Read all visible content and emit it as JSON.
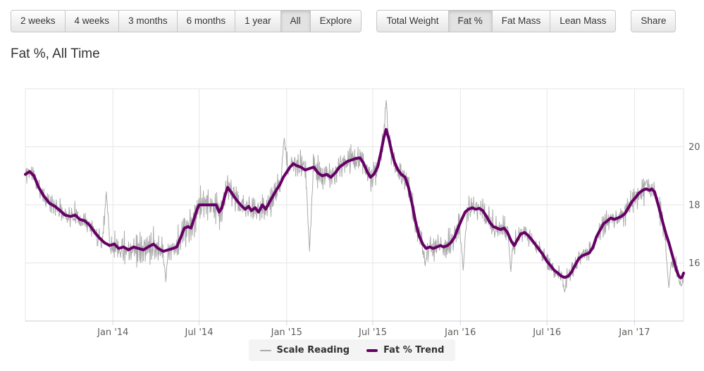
{
  "title": "Fat %, All Time",
  "toolbar": {
    "groups": [
      {
        "name": "time-range",
        "buttons": [
          {
            "label": "2 weeks",
            "active": false
          },
          {
            "label": "4 weeks",
            "active": false
          },
          {
            "label": "3 months",
            "active": false
          },
          {
            "label": "6 months",
            "active": false
          },
          {
            "label": "1 year",
            "active": false
          },
          {
            "label": "All",
            "active": true
          },
          {
            "label": "Explore",
            "active": false
          }
        ]
      },
      {
        "name": "metric",
        "buttons": [
          {
            "label": "Total Weight",
            "active": false
          },
          {
            "label": "Fat %",
            "active": true
          },
          {
            "label": "Fat Mass",
            "active": false
          },
          {
            "label": "Lean Mass",
            "active": false
          }
        ]
      },
      {
        "name": "share",
        "buttons": [
          {
            "label": "Share",
            "active": false
          }
        ]
      }
    ]
  },
  "legend": {
    "items": [
      {
        "label": "Scale Reading",
        "color": "#aaaaaa",
        "thickness": 2
      },
      {
        "label": "Fat % Trend",
        "color": "#660066",
        "thickness": 4
      }
    ]
  },
  "chart_data": {
    "type": "line",
    "title": "Fat %, All Time",
    "x_axis": {
      "epoch": "2013-07-01",
      "unit": "days_since_epoch",
      "range": [
        0,
        1383
      ],
      "ticks": [
        {
          "day": 184,
          "label": "Jan '14"
        },
        {
          "day": 365,
          "label": "Jul '14"
        },
        {
          "day": 549,
          "label": "Jan '15"
        },
        {
          "day": 730,
          "label": "Jul '15"
        },
        {
          "day": 914,
          "label": "Jan '16"
        },
        {
          "day": 1096,
          "label": "Jul '16"
        },
        {
          "day": 1280,
          "label": "Jan '17"
        }
      ]
    },
    "y_axis": {
      "range": [
        14,
        22
      ],
      "ticks": [
        16,
        18,
        20
      ],
      "unit": "percent",
      "opposite": true
    },
    "colors": {
      "grid": "#e6e6e6",
      "plot_border": "#e6e6e6",
      "axis_line": "#c9ccd1",
      "tick": "#ccd6eb",
      "axis_label": "#606060"
    },
    "legend_position": "bottom-center",
    "series": [
      {
        "name": "Scale Reading",
        "color": "#aaaaaa",
        "width": 1,
        "style": "noisy_daily_readings_around_trend",
        "noise_seed": 11,
        "noise_profile": [
          [
            0,
            0.34
          ],
          [
            150,
            0.52
          ],
          [
            460,
            0.44
          ],
          [
            700,
            0.42
          ],
          [
            1000,
            0.34
          ],
          [
            1260,
            0.4
          ]
        ],
        "extremes": [
          [
            170,
            18.45
          ],
          [
            295,
            15.35
          ],
          [
            544,
            20.3
          ],
          [
            597,
            16.4
          ],
          [
            758,
            21.6
          ],
          [
            840,
            15.9
          ],
          [
            920,
            15.75
          ],
          [
            1020,
            15.7
          ],
          [
            1133,
            15.0
          ],
          [
            1305,
            18.85
          ],
          [
            1352,
            15.15
          ],
          [
            1378,
            15.2
          ]
        ]
      },
      {
        "name": "Fat % Trend",
        "color": "#660066",
        "width": 4,
        "points": [
          [
            0,
            19.05
          ],
          [
            9,
            19.15
          ],
          [
            18,
            19.0
          ],
          [
            28,
            18.6
          ],
          [
            39,
            18.3
          ],
          [
            51,
            18.05
          ],
          [
            62,
            17.95
          ],
          [
            73,
            17.8
          ],
          [
            83,
            17.65
          ],
          [
            95,
            17.6
          ],
          [
            105,
            17.65
          ],
          [
            114,
            17.5
          ],
          [
            125,
            17.45
          ],
          [
            135,
            17.3
          ],
          [
            146,
            17.05
          ],
          [
            156,
            16.85
          ],
          [
            166,
            16.7
          ],
          [
            177,
            16.6
          ],
          [
            187,
            16.65
          ],
          [
            196,
            16.5
          ],
          [
            206,
            16.55
          ],
          [
            217,
            16.45
          ],
          [
            227,
            16.55
          ],
          [
            238,
            16.5
          ],
          [
            248,
            16.45
          ],
          [
            258,
            16.55
          ],
          [
            269,
            16.65
          ],
          [
            279,
            16.5
          ],
          [
            290,
            16.4
          ],
          [
            300,
            16.45
          ],
          [
            310,
            16.5
          ],
          [
            318,
            16.55
          ],
          [
            327,
            16.9
          ],
          [
            334,
            17.2
          ],
          [
            342,
            17.25
          ],
          [
            348,
            17.2
          ],
          [
            354,
            17.5
          ],
          [
            360,
            17.8
          ],
          [
            365,
            18.0
          ],
          [
            389,
            18.0
          ],
          [
            401,
            18.0
          ],
          [
            407,
            17.75
          ],
          [
            413,
            17.9
          ],
          [
            419,
            18.3
          ],
          [
            425,
            18.6
          ],
          [
            432,
            18.45
          ],
          [
            440,
            18.25
          ],
          [
            447,
            18.1
          ],
          [
            455,
            17.95
          ],
          [
            462,
            17.85
          ],
          [
            469,
            17.95
          ],
          [
            475,
            17.8
          ],
          [
            483,
            17.9
          ],
          [
            490,
            17.75
          ],
          [
            498,
            18.0
          ],
          [
            505,
            17.85
          ],
          [
            513,
            18.1
          ],
          [
            520,
            18.3
          ],
          [
            527,
            18.5
          ],
          [
            535,
            18.7
          ],
          [
            542,
            18.95
          ],
          [
            550,
            19.15
          ],
          [
            556,
            19.3
          ],
          [
            563,
            19.42
          ],
          [
            570,
            19.35
          ],
          [
            579,
            19.3
          ],
          [
            588,
            19.2
          ],
          [
            597,
            19.25
          ],
          [
            606,
            19.3
          ],
          [
            615,
            19.1
          ],
          [
            624,
            19.0
          ],
          [
            633,
            19.05
          ],
          [
            642,
            18.95
          ],
          [
            651,
            19.1
          ],
          [
            660,
            19.3
          ],
          [
            668,
            19.4
          ],
          [
            677,
            19.5
          ],
          [
            686,
            19.55
          ],
          [
            695,
            19.6
          ],
          [
            703,
            19.62
          ],
          [
            710,
            19.45
          ],
          [
            718,
            19.15
          ],
          [
            725,
            18.95
          ],
          [
            732,
            19.05
          ],
          [
            740,
            19.3
          ],
          [
            747,
            19.8
          ],
          [
            753,
            20.3
          ],
          [
            758,
            20.6
          ],
          [
            764,
            20.25
          ],
          [
            770,
            19.8
          ],
          [
            776,
            19.45
          ],
          [
            783,
            19.2
          ],
          [
            790,
            19.05
          ],
          [
            798,
            18.95
          ],
          [
            805,
            18.6
          ],
          [
            813,
            18.0
          ],
          [
            820,
            17.4
          ],
          [
            827,
            16.95
          ],
          [
            835,
            16.65
          ],
          [
            842,
            16.5
          ],
          [
            850,
            16.55
          ],
          [
            857,
            16.5
          ],
          [
            865,
            16.55
          ],
          [
            872,
            16.6
          ],
          [
            879,
            16.55
          ],
          [
            887,
            16.6
          ],
          [
            894,
            16.7
          ],
          [
            902,
            16.9
          ],
          [
            909,
            17.2
          ],
          [
            917,
            17.5
          ],
          [
            924,
            17.75
          ],
          [
            931,
            17.85
          ],
          [
            939,
            17.9
          ],
          [
            946,
            17.85
          ],
          [
            954,
            17.88
          ],
          [
            961,
            17.8
          ],
          [
            969,
            17.6
          ],
          [
            976,
            17.4
          ],
          [
            983,
            17.25
          ],
          [
            991,
            17.2
          ],
          [
            998,
            17.15
          ],
          [
            1006,
            17.2
          ],
          [
            1013,
            17.05
          ],
          [
            1021,
            16.75
          ],
          [
            1027,
            16.6
          ],
          [
            1034,
            16.8
          ],
          [
            1041,
            17.0
          ],
          [
            1049,
            17.05
          ],
          [
            1056,
            16.95
          ],
          [
            1064,
            16.8
          ],
          [
            1071,
            16.65
          ],
          [
            1078,
            16.5
          ],
          [
            1087,
            16.3
          ],
          [
            1096,
            16.05
          ],
          [
            1104,
            15.9
          ],
          [
            1111,
            15.75
          ],
          [
            1119,
            15.65
          ],
          [
            1126,
            15.55
          ],
          [
            1133,
            15.5
          ],
          [
            1141,
            15.55
          ],
          [
            1148,
            15.7
          ],
          [
            1156,
            15.95
          ],
          [
            1163,
            16.15
          ],
          [
            1170,
            16.25
          ],
          [
            1178,
            16.3
          ],
          [
            1185,
            16.35
          ],
          [
            1193,
            16.55
          ],
          [
            1200,
            16.9
          ],
          [
            1208,
            17.15
          ],
          [
            1215,
            17.35
          ],
          [
            1223,
            17.45
          ],
          [
            1230,
            17.55
          ],
          [
            1237,
            17.5
          ],
          [
            1245,
            17.55
          ],
          [
            1252,
            17.6
          ],
          [
            1260,
            17.7
          ],
          [
            1267,
            17.9
          ],
          [
            1274,
            18.1
          ],
          [
            1282,
            18.25
          ],
          [
            1289,
            18.4
          ],
          [
            1297,
            18.5
          ],
          [
            1304,
            18.55
          ],
          [
            1312,
            18.5
          ],
          [
            1316,
            18.55
          ],
          [
            1322,
            18.45
          ],
          [
            1328,
            18.1
          ],
          [
            1334,
            17.75
          ],
          [
            1340,
            17.35
          ],
          [
            1346,
            17.0
          ],
          [
            1352,
            16.7
          ],
          [
            1358,
            16.35
          ],
          [
            1363,
            16.05
          ],
          [
            1368,
            15.75
          ],
          [
            1373,
            15.55
          ],
          [
            1377,
            15.48
          ],
          [
            1380,
            15.52
          ],
          [
            1383,
            15.65
          ]
        ]
      }
    ]
  }
}
